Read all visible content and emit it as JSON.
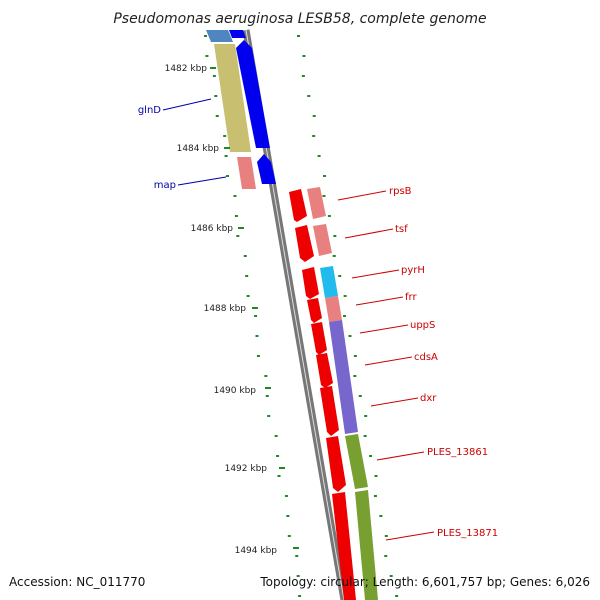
{
  "title": "Pseudomonas aeruginosa LESB58, complete genome",
  "footer": {
    "accession": "Accession: NC_011770",
    "summary": "Topology: circular; Length: 6,601,757 bp; Genes: 6,026"
  },
  "ticks": [
    "1482 kbp",
    "1484 kbp",
    "1486 kbp",
    "1488 kbp",
    "1490 kbp",
    "1492 kbp",
    "1494 kbp"
  ],
  "genes_left": [
    {
      "label": "glnD",
      "color": "#0000aa"
    },
    {
      "label": "map",
      "color": "#0000aa"
    }
  ],
  "genes_right": [
    {
      "label": "rpsB",
      "color": "#cc0000"
    },
    {
      "label": "tsf",
      "color": "#cc0000"
    },
    {
      "label": "pyrH",
      "color": "#cc0000"
    },
    {
      "label": "frr",
      "color": "#cc0000"
    },
    {
      "label": "uppS",
      "color": "#cc0000"
    },
    {
      "label": "cdsA",
      "color": "#cc0000"
    },
    {
      "label": "dxr",
      "color": "#cc0000"
    },
    {
      "label": "PLES_13861",
      "color": "#cc0000"
    },
    {
      "label": "PLES_13871",
      "color": "#cc0000"
    }
  ],
  "colors": {
    "backbone": "#888888",
    "cds_forward": "#0000ee",
    "cds_reverse": "#ee0000",
    "cog_khaki": "#c8c070",
    "cog_pink": "#e88080",
    "cog_cyan": "#22bbee",
    "cog_purple": "#7766cc",
    "cog_olive": "#77a030",
    "cog_steel": "#4f86c0",
    "gc_dots": "#228822"
  }
}
